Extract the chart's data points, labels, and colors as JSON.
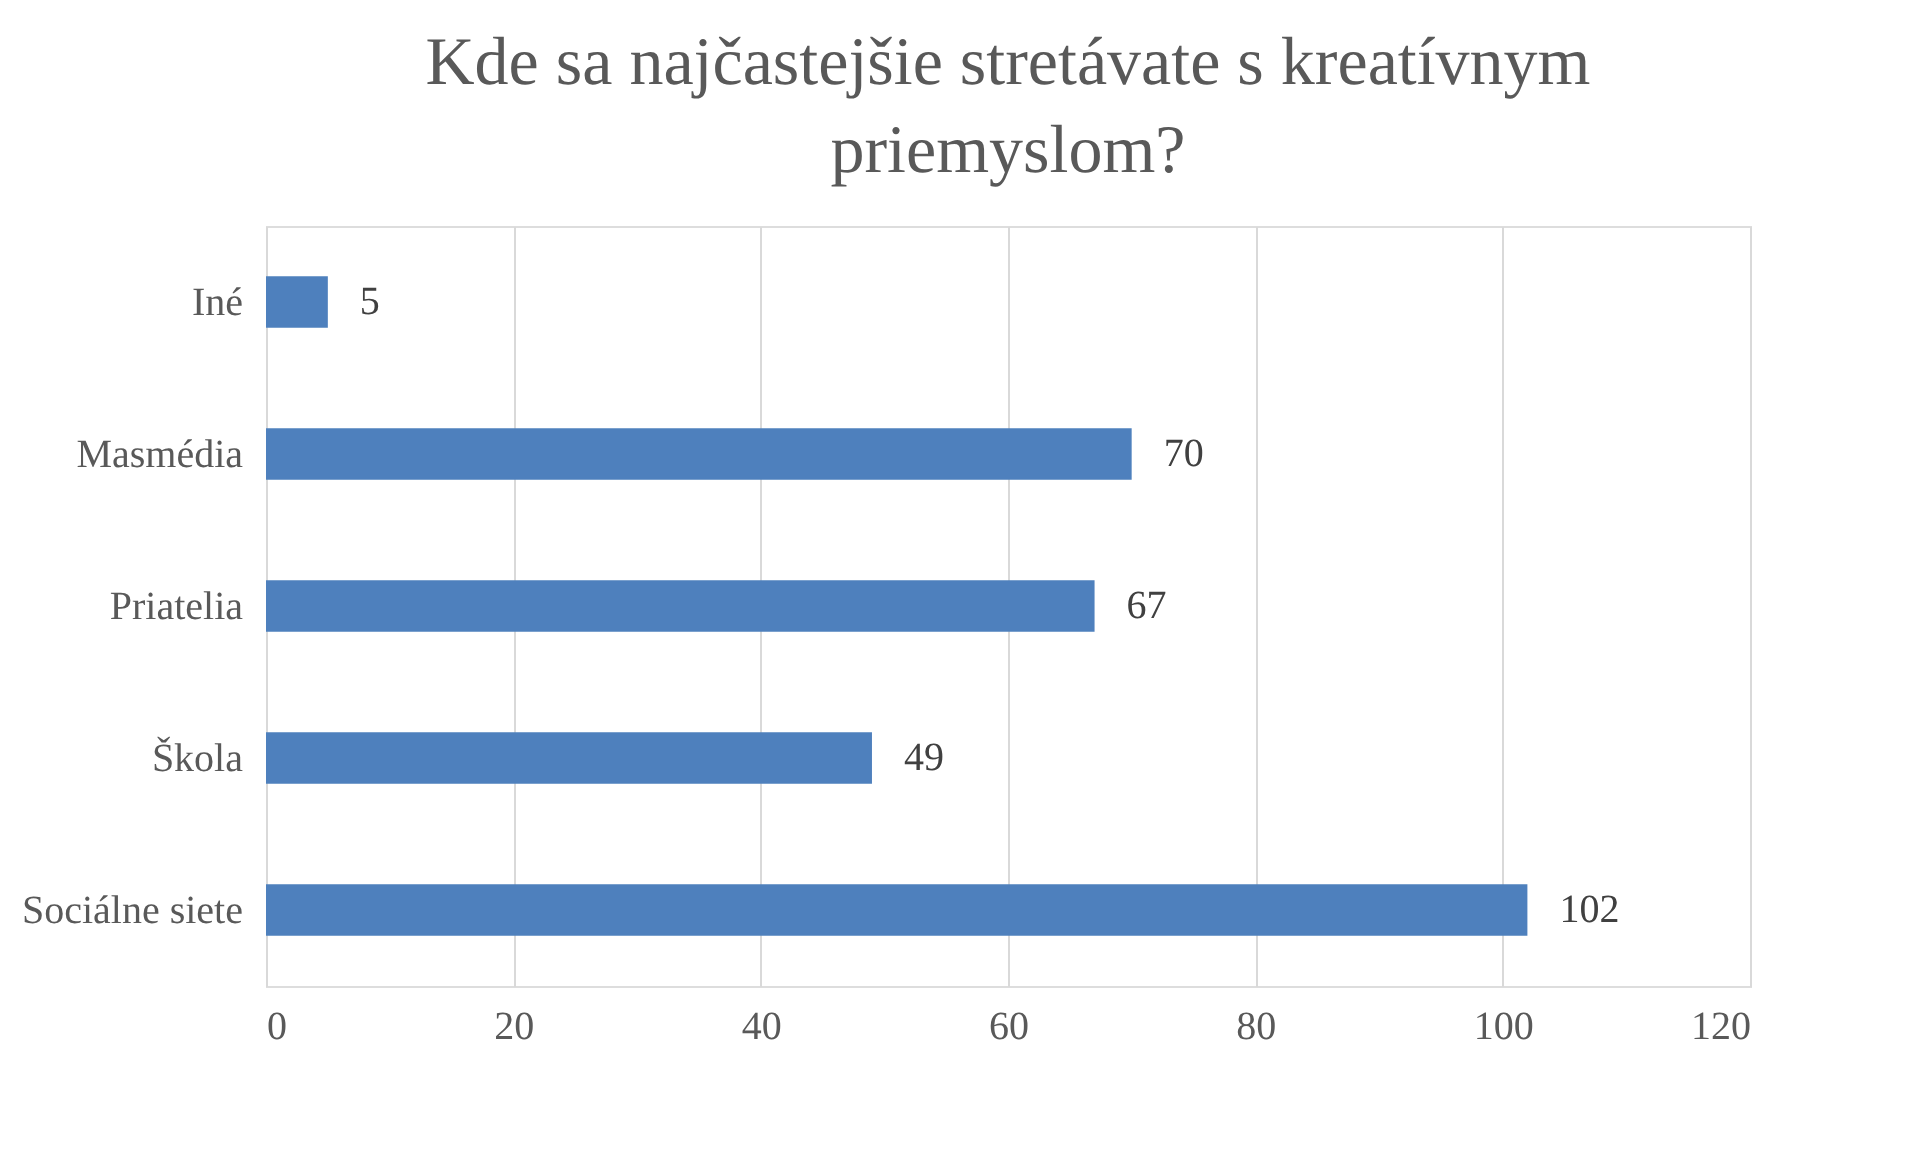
{
  "chart_data": {
    "type": "bar",
    "orientation": "horizontal",
    "title": "Kde sa najčastejšie stretávate s kreatívnym priemyslom?",
    "categories": [
      "Iné",
      "Masmédia",
      "Priatelia",
      "Škola",
      "Sociálne siete"
    ],
    "values": [
      5,
      70,
      67,
      49,
      102
    ],
    "color": "#4e80bd",
    "xlim": [
      0,
      120
    ],
    "xticks": [
      0,
      20,
      40,
      60,
      80,
      100,
      120
    ],
    "grid": "x",
    "data_labels": true
  }
}
